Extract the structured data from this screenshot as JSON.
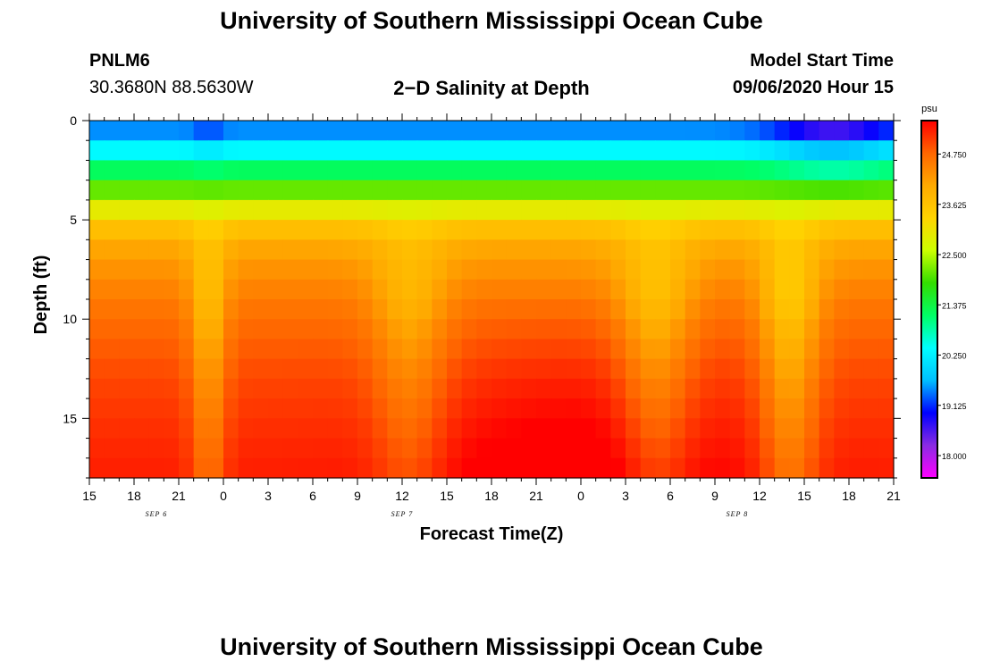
{
  "page": {
    "title_top": "University of Southern Mississippi Ocean Cube",
    "title_bottom": "University of Southern Mississippi Ocean Cube",
    "station_id": "PNLM6",
    "station_coords": "30.3680N 88.5630W",
    "plot_title": "2−D Salinity at Depth",
    "model_start_label": "Model Start Time",
    "model_start_value": "09/06/2020 Hour 15"
  },
  "colors": {
    "scale": [
      "#ff00ff",
      "#8a2be2",
      "#0000ff",
      "#00bfff",
      "#00ffff",
      "#00ff66",
      "#33dd00",
      "#ccff00",
      "#ffd400",
      "#ffaa00",
      "#ff6600",
      "#ff0000"
    ]
  },
  "chart_data": {
    "type": "heatmap",
    "title": "2−D Salinity at Depth",
    "xlabel": "Forecast Time(Z)",
    "ylabel": "Depth (ft)",
    "colorbar_unit": "psu",
    "x_tick_labels": [
      "15",
      "18",
      "21",
      "0",
      "3",
      "6",
      "9",
      "12",
      "15",
      "18",
      "21",
      "0",
      "3",
      "6",
      "9",
      "12",
      "15",
      "18",
      "21"
    ],
    "x_range_hours": [
      0,
      54
    ],
    "date_labels": [
      {
        "label": "SEP 6",
        "hour": 4.5
      },
      {
        "label": "SEP 7",
        "hour": 21
      },
      {
        "label": "SEP 8",
        "hour": 43.5
      }
    ],
    "y_ticks": [
      0,
      5,
      10,
      15
    ],
    "y_tick_labels": [
      "0",
      "5",
      "10",
      "15"
    ],
    "y_range": [
      0,
      18
    ],
    "color_range": [
      17.5,
      25.5
    ],
    "colorbar_ticks": [
      18.0,
      19.125,
      20.25,
      21.375,
      22.5,
      23.625,
      24.75
    ],
    "colorbar_tick_labels": [
      "18.000",
      "19.125",
      "20.250",
      "21.375",
      "22.500",
      "23.625",
      "24.750"
    ],
    "depth_profile": {
      "depths": [
        0,
        1,
        2,
        3,
        4,
        5,
        6,
        8,
        10,
        13,
        16,
        18
      ],
      "salinity": [
        19.0,
        20.0,
        20.7,
        21.7,
        22.5,
        23.4,
        24.0,
        24.4,
        24.7,
        25.0,
        25.2,
        25.3
      ]
    },
    "deep_anomalies": [
      {
        "hour": 8,
        "width": 1.2,
        "delta": -1.0
      },
      {
        "hour": 21.5,
        "width": 2.5,
        "delta": -0.8
      },
      {
        "hour": 38,
        "width": 2.5,
        "delta": -1.0
      },
      {
        "hour": 47,
        "width": 2.0,
        "delta": -1.2
      }
    ],
    "surface_anomalies": [
      {
        "hour": 8,
        "width": 1.0,
        "delta": -0.3
      },
      {
        "hour": 50,
        "width": 4.0,
        "delta": -1.0
      }
    ],
    "deep_trend": {
      "peak_hour": 33,
      "width": 10,
      "delta": 0.5
    }
  }
}
